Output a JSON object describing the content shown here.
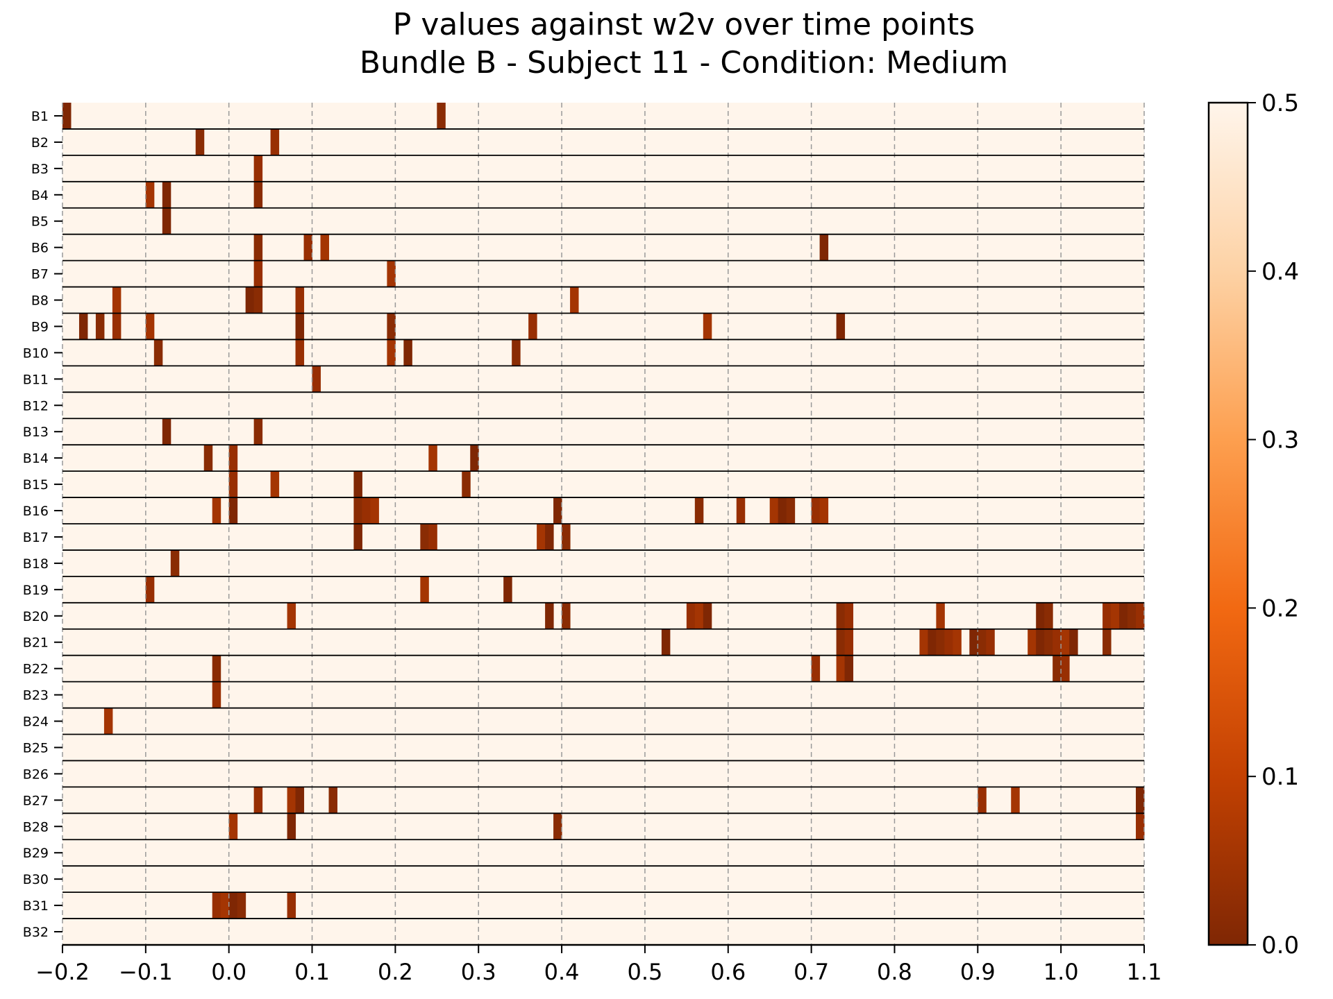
{
  "chart_data": {
    "type": "heatmap",
    "title": "P values against w2v over time points",
    "subtitle": "Bundle B - Subject 11 - Condition: Medium",
    "xlim": [
      -0.2,
      1.1
    ],
    "x_ticks": [
      -0.2,
      -0.1,
      0.0,
      0.1,
      0.2,
      0.3,
      0.4,
      0.5,
      0.6,
      0.7,
      0.8,
      0.9,
      1.0,
      1.1
    ],
    "x_tick_labels": [
      "−0.2",
      "−0.1",
      "0.0",
      "0.1",
      "0.2",
      "0.3",
      "0.4",
      "0.5",
      "0.6",
      "0.7",
      "0.8",
      "0.9",
      "1.0",
      "1.1"
    ],
    "cell_width": 0.01,
    "grid": "vertical dashed at major x ticks",
    "colormap": "Oranges_r",
    "colorbar": {
      "range": [
        0.0,
        0.5
      ],
      "ticks": [
        0.0,
        0.1,
        0.2,
        0.3,
        0.4,
        0.5
      ],
      "tick_labels": [
        "0.0",
        "0.1",
        "0.2",
        "0.3",
        "0.4",
        "0.5"
      ],
      "placement": "right"
    },
    "rows": [
      {
        "label": "B1",
        "significant_x": [
          -0.2,
          0.25
        ]
      },
      {
        "label": "B2",
        "significant_x": [
          -0.04,
          0.05
        ]
      },
      {
        "label": "B3",
        "significant_x": [
          0.03
        ]
      },
      {
        "label": "B4",
        "significant_x": [
          -0.1,
          -0.08,
          0.03
        ]
      },
      {
        "label": "B5",
        "significant_x": [
          -0.08
        ]
      },
      {
        "label": "B6",
        "significant_x": [
          0.03,
          0.09,
          0.11,
          0.71
        ]
      },
      {
        "label": "B7",
        "significant_x": [
          0.03,
          0.19
        ]
      },
      {
        "label": "B8",
        "significant_x": [
          -0.14,
          0.02,
          0.03,
          0.08,
          0.41
        ]
      },
      {
        "label": "B9",
        "significant_x": [
          -0.18,
          -0.16,
          -0.14,
          -0.1,
          0.08,
          0.19,
          0.36,
          0.57,
          0.73
        ]
      },
      {
        "label": "B10",
        "significant_x": [
          -0.09,
          0.08,
          0.19,
          0.21,
          0.34
        ]
      },
      {
        "label": "B11",
        "significant_x": [
          0.1
        ]
      },
      {
        "label": "B12",
        "significant_x": []
      },
      {
        "label": "B13",
        "significant_x": [
          -0.08,
          0.03
        ]
      },
      {
        "label": "B14",
        "significant_x": [
          -0.03,
          0.0,
          0.24,
          0.29
        ]
      },
      {
        "label": "B15",
        "significant_x": [
          0.0,
          0.05,
          0.15,
          0.28
        ]
      },
      {
        "label": "B16",
        "significant_x": [
          -0.02,
          0.0,
          0.15,
          0.16,
          0.17,
          0.39,
          0.56,
          0.61,
          0.65,
          0.66,
          0.67,
          0.7,
          0.71
        ]
      },
      {
        "label": "B17",
        "significant_x": [
          0.15,
          0.23,
          0.24,
          0.37,
          0.38,
          0.4
        ]
      },
      {
        "label": "B18",
        "significant_x": [
          -0.07
        ]
      },
      {
        "label": "B19",
        "significant_x": [
          -0.1,
          0.23,
          0.33
        ]
      },
      {
        "label": "B20",
        "significant_x": [
          0.07,
          0.38,
          0.4,
          0.55,
          0.56,
          0.57,
          0.73,
          0.74,
          0.85,
          0.97,
          0.98,
          1.05,
          1.06,
          1.07,
          1.08,
          1.09
        ]
      },
      {
        "label": "B21",
        "significant_x": [
          0.52,
          0.73,
          0.74,
          0.83,
          0.84,
          0.85,
          0.86,
          0.87,
          0.89,
          0.9,
          0.91,
          0.96,
          0.97,
          0.98,
          0.99,
          1.0,
          1.01,
          1.05
        ]
      },
      {
        "label": "B22",
        "significant_x": [
          -0.02,
          0.7,
          0.73,
          0.74,
          0.99,
          1.0
        ]
      },
      {
        "label": "B23",
        "significant_x": [
          -0.02
        ]
      },
      {
        "label": "B24",
        "significant_x": [
          -0.15
        ]
      },
      {
        "label": "B25",
        "significant_x": []
      },
      {
        "label": "B26",
        "significant_x": []
      },
      {
        "label": "B27",
        "significant_x": [
          0.03,
          0.07,
          0.08,
          0.12,
          0.9,
          0.94,
          1.09
        ]
      },
      {
        "label": "B28",
        "significant_x": [
          0.0,
          0.07,
          0.39,
          1.09
        ]
      },
      {
        "label": "B29",
        "significant_x": []
      },
      {
        "label": "B30",
        "significant_x": []
      },
      {
        "label": "B31",
        "significant_x": [
          -0.02,
          -0.01,
          0.0,
          0.01,
          0.07
        ]
      },
      {
        "label": "B32",
        "significant_x": []
      }
    ]
  }
}
